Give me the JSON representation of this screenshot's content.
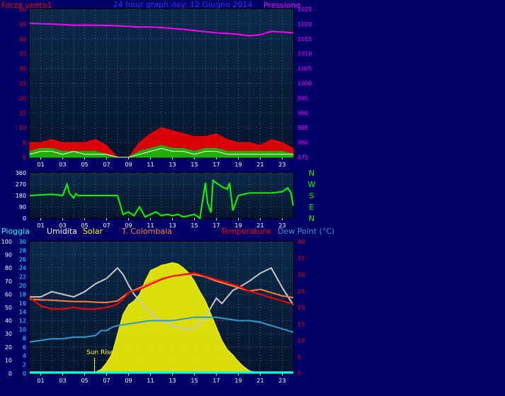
{
  "colors": {
    "background": "#000066",
    "plot_top": "#0c2a4a",
    "plot_bottom": "#05142c",
    "frame": "#000000",
    "grid": "#446688",
    "hour_tick": "#ffffff",
    "wind": "#ff0000",
    "gust": "#00cc00",
    "wind_white": "#ffffff",
    "pressure": "#ff00ff",
    "direction": "#00ff00",
    "humidity": "#c8c8c8",
    "solar": "#ffff00",
    "t_colombaia": "#ff8040",
    "temperature": "#ff0000",
    "dew_point": "#3399cc",
    "rain": "#00ffff"
  },
  "chart_data": [
    {
      "name": "wind-pressure",
      "type": "line",
      "title": "24 hour graph day: 12 Giugno 2014",
      "left_label": "Forza vento1",
      "right_label": "Pressione",
      "x_ticks": [
        "01",
        "03",
        "05",
        "07",
        "09",
        "11",
        "13",
        "15",
        "17",
        "19",
        "21",
        "23"
      ],
      "x_range": [
        0,
        24
      ],
      "ylim": [
        0,
        50
      ],
      "y_ticks": [
        "0",
        "5",
        "10",
        "15",
        "20",
        "25",
        "30",
        "35",
        "40",
        "45",
        "50"
      ],
      "y2lim": [
        975,
        1025
      ],
      "y2_ticks": [
        "975",
        "980",
        "985",
        "990",
        "995",
        "1000",
        "1005",
        "1010",
        "1015",
        "1020",
        "1025"
      ],
      "series": [
        {
          "key": "pressure",
          "axis": "right",
          "x": [
            0,
            1,
            2,
            3,
            4,
            5,
            6,
            7,
            8,
            9,
            10,
            11,
            12,
            13,
            14,
            15,
            16,
            17,
            18,
            19,
            20,
            21,
            22,
            23,
            24
          ],
          "y": [
            1020.3,
            1020.1,
            1020.0,
            1019.8,
            1019.6,
            1019.6,
            1019.6,
            1019.5,
            1019.4,
            1019.2,
            1019.0,
            1019.0,
            1018.8,
            1018.5,
            1018.2,
            1017.8,
            1017.4,
            1017.0,
            1016.8,
            1016.5,
            1016.0,
            1016.4,
            1017.5,
            1017.3,
            1017.0
          ]
        },
        {
          "key": "wind",
          "axis": "left",
          "x": [
            0,
            1,
            2,
            3,
            4,
            5,
            6,
            7,
            8,
            9,
            10,
            11,
            12,
            13,
            14,
            15,
            16,
            17,
            18,
            19,
            20,
            21,
            22,
            23,
            24
          ],
          "y": [
            5,
            5,
            6,
            5,
            5,
            5,
            6,
            4,
            0,
            0,
            5,
            8,
            10,
            9,
            8,
            7,
            7,
            8,
            6,
            5,
            5,
            4,
            6,
            5,
            3
          ]
        },
        {
          "key": "gust",
          "axis": "left",
          "x": [
            0,
            1,
            2,
            3,
            4,
            5,
            6,
            7,
            8,
            9,
            10,
            11,
            12,
            13,
            14,
            15,
            16,
            17,
            18,
            19,
            20,
            21,
            22,
            23,
            24
          ],
          "y": [
            2,
            3,
            3,
            2,
            2,
            2,
            2,
            1,
            0,
            0,
            2,
            3,
            4,
            3,
            3,
            2,
            3,
            3,
            2,
            2,
            2,
            2,
            2,
            2,
            1
          ]
        },
        {
          "key": "wind_white",
          "axis": "left",
          "x": [
            0,
            1,
            2,
            3,
            4,
            5,
            6,
            7,
            8,
            9,
            10,
            11,
            12,
            13,
            14,
            15,
            16,
            17,
            18,
            19,
            20,
            21,
            22,
            23,
            24
          ],
          "y": [
            1,
            2,
            2,
            1,
            2,
            1,
            1,
            1,
            0,
            0,
            1,
            2,
            3,
            2,
            2,
            1,
            2,
            2,
            1,
            1,
            1,
            1,
            1,
            1,
            1
          ]
        }
      ]
    },
    {
      "name": "wind-direction",
      "type": "line",
      "ylim": [
        0,
        360
      ],
      "y_ticks": [
        "0",
        "90",
        "180",
        "270",
        "360"
      ],
      "x_ticks": [
        "01",
        "03",
        "05",
        "07",
        "09",
        "11",
        "13",
        "15",
        "17",
        "19",
        "21",
        "23"
      ],
      "x_range": [
        0,
        24
      ],
      "compass": [
        "N",
        "W",
        "S",
        "E",
        "N"
      ],
      "series": [
        {
          "key": "direction",
          "x": [
            0,
            2,
            3,
            3.4,
            3.6,
            4,
            4.2,
            4.4,
            5.8,
            6,
            7,
            8,
            8.5,
            9,
            9.5,
            10,
            10.5,
            11,
            11.5,
            12,
            12.5,
            13,
            13.5,
            14,
            15,
            15.5,
            16,
            16.2,
            16.5,
            16.7,
            17,
            17.5,
            18,
            18.2,
            18.5,
            19,
            20,
            21,
            22,
            23,
            23.5,
            23.8,
            24
          ],
          "y": [
            180,
            190,
            180,
            270,
            200,
            160,
            195,
            180,
            180,
            180,
            180,
            180,
            30,
            50,
            20,
            90,
            10,
            30,
            50,
            20,
            30,
            20,
            30,
            10,
            30,
            0,
            280,
            120,
            45,
            300,
            280,
            250,
            230,
            280,
            60,
            180,
            200,
            200,
            200,
            210,
            240,
            200,
            100
          ]
        }
      ]
    },
    {
      "name": "temperature-humidity",
      "type": "area",
      "legend": [
        "Pioggia",
        "Umidita",
        "Solar",
        "T. Colombaia",
        "Temperatura",
        "Dew Point (°C)"
      ],
      "annotation": "Sun Rise",
      "x_ticks": [
        "01",
        "03",
        "05",
        "07",
        "09",
        "11",
        "13",
        "15",
        "17",
        "19",
        "21",
        "23"
      ],
      "x_range": [
        0,
        24
      ],
      "ylim_humidity": [
        0,
        100
      ],
      "y_ticks_humidity": [
        "0",
        "10",
        "20",
        "30",
        "40",
        "50",
        "60",
        "70",
        "80",
        "90",
        "100"
      ],
      "ylim_rain": [
        0,
        30
      ],
      "y_ticks_rain": [
        "0",
        "2",
        "4",
        "6",
        "8",
        "10",
        "12",
        "14",
        "16",
        "18",
        "20",
        "22",
        "24",
        "26",
        "28",
        "30"
      ],
      "ylim_temp": [
        0,
        40
      ],
      "y_ticks_temp": [
        "0",
        "5",
        "10",
        "15",
        "20",
        "25",
        "30",
        "35",
        "40"
      ],
      "series": [
        {
          "key": "solar",
          "axis": "humidity",
          "x": [
            0,
            5,
            5.8,
            6,
            6.5,
            7,
            7.5,
            8,
            8.5,
            9,
            9.5,
            10,
            10.5,
            11,
            11.5,
            12,
            12.5,
            13,
            13.5,
            14,
            14.5,
            15,
            15.5,
            16,
            16.5,
            17,
            17.5,
            18,
            18.5,
            19,
            19.5,
            20,
            21,
            24
          ],
          "y": [
            0,
            0,
            0,
            1,
            3,
            8,
            15,
            30,
            45,
            52,
            55,
            60,
            70,
            78,
            80,
            82,
            83,
            84,
            83,
            80,
            76,
            70,
            62,
            55,
            45,
            35,
            25,
            18,
            14,
            9,
            5,
            2,
            0,
            0
          ]
        },
        {
          "key": "humidity",
          "axis": "humidity",
          "x": [
            0,
            1,
            2,
            3,
            4,
            5,
            6,
            7,
            8,
            8.5,
            9,
            9.5,
            10,
            10.5,
            11,
            11.5,
            12,
            12.5,
            13,
            13.5,
            14,
            14.5,
            15,
            15.5,
            16,
            16.5,
            17,
            17.5,
            18,
            18.5,
            19,
            20,
            21,
            22,
            23,
            24
          ],
          "y": [
            58,
            58,
            62,
            60,
            58,
            62,
            68,
            72,
            80,
            75,
            67,
            60,
            55,
            50,
            46,
            42,
            40,
            38,
            36,
            35,
            34,
            33,
            35,
            38,
            43,
            50,
            57,
            53,
            58,
            63,
            65,
            70,
            76,
            80,
            65,
            52
          ]
        },
        {
          "key": "t_colombaia",
          "axis": "temp",
          "x": [
            0,
            1,
            2,
            3,
            4,
            5,
            6,
            7,
            8,
            9,
            10,
            11,
            12,
            13,
            14,
            15,
            16,
            17,
            18,
            19,
            20,
            21,
            22,
            23,
            24
          ],
          "y": [
            22.5,
            22.3,
            22.2,
            22.0,
            21.8,
            21.8,
            21.6,
            21.5,
            22.0,
            24.5,
            26.0,
            27.5,
            28.8,
            29.5,
            29.8,
            30.0,
            29.3,
            28.0,
            27.0,
            26.0,
            25.0,
            25.5,
            24.5,
            23.5,
            23.0
          ]
        },
        {
          "key": "temperature",
          "axis": "temp",
          "x": [
            0,
            1,
            2,
            3,
            4,
            5,
            6,
            7,
            8,
            8.5,
            9,
            9.5,
            10,
            11,
            12,
            13,
            14,
            15,
            16,
            17,
            18,
            19,
            20,
            21,
            22,
            23,
            24
          ],
          "y": [
            23.0,
            20.5,
            19.5,
            19.5,
            20.0,
            19.5,
            19.5,
            20.0,
            21.0,
            22.5,
            24.5,
            25.0,
            25.5,
            27.0,
            28.5,
            29.5,
            30.0,
            30.5,
            29.5,
            28.5,
            27.5,
            26.5,
            25.0,
            24.0,
            23.0,
            22.0,
            21.0
          ]
        },
        {
          "key": "dew_point",
          "axis": "temp",
          "x": [
            0,
            1,
            2,
            3,
            4,
            5,
            6,
            6.5,
            7,
            7.5,
            8,
            9,
            10,
            11,
            12,
            13,
            14,
            15,
            16,
            17,
            18,
            19,
            20,
            21,
            22,
            23,
            24
          ],
          "y": [
            9.5,
            10,
            10.5,
            10.5,
            11,
            11,
            11.5,
            13,
            13,
            14,
            14.5,
            15,
            15.5,
            16,
            16,
            16,
            16.5,
            17,
            17,
            17,
            16.5,
            16,
            16,
            15.5,
            14.5,
            13.5,
            12.5
          ]
        },
        {
          "key": "rain",
          "axis": "rain",
          "x": [
            0,
            24
          ],
          "y": [
            0.2,
            0.2
          ]
        }
      ]
    }
  ]
}
